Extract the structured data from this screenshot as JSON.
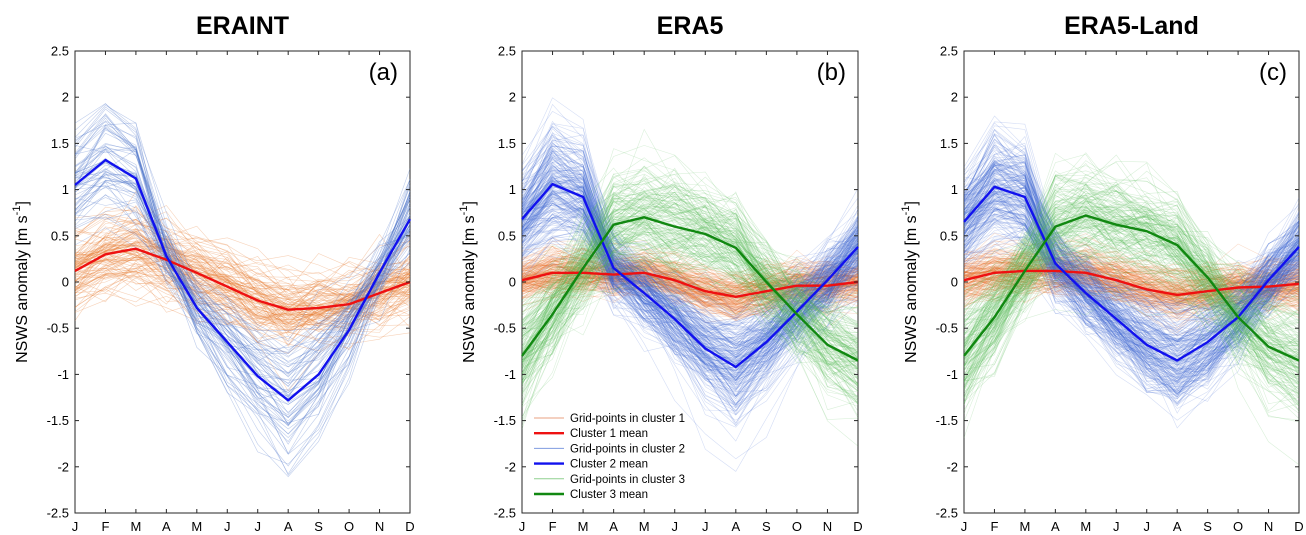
{
  "chart_data": [
    {
      "type": "line",
      "title": "ERAINT",
      "panel_label": "(a)",
      "ylabel": "NSWS anomaly [m s",
      "ylabel_sup": "-1",
      "ylabel_end": "]",
      "x": [
        "J",
        "F",
        "M",
        "A",
        "M",
        "J",
        "J",
        "A",
        "S",
        "O",
        "N",
        "D"
      ],
      "ylim": [
        -2.5,
        2.5
      ],
      "yticks": [
        "-2.5",
        "-2",
        "-1.5",
        "-1",
        "-0.5",
        "0",
        "0.5",
        "1",
        "1.5",
        "2",
        "2.5"
      ],
      "series": [
        {
          "name": "Cluster 1 mean",
          "color": "#ee1111",
          "values": [
            0.12,
            0.3,
            0.36,
            0.24,
            0.1,
            -0.05,
            -0.2,
            -0.3,
            -0.28,
            -0.24,
            -0.12,
            0.0
          ]
        },
        {
          "name": "Cluster 2 mean",
          "color": "#1111ee",
          "values": [
            1.05,
            1.32,
            1.12,
            0.28,
            -0.28,
            -0.65,
            -1.02,
            -1.28,
            -1.0,
            -0.52,
            0.1,
            0.68
          ]
        }
      ],
      "spread": [
        {
          "name": "Grid-points in cluster 1",
          "color": "#e8803a",
          "width": 0.35
        },
        {
          "name": "Grid-points in cluster 2",
          "color": "#4a72c8",
          "width": 0.3
        }
      ]
    },
    {
      "type": "line",
      "title": "ERA5",
      "panel_label": "(b)",
      "ylabel": "NSWS anomaly [m s",
      "ylabel_sup": "-1",
      "ylabel_end": "]",
      "x": [
        "J",
        "F",
        "M",
        "A",
        "M",
        "J",
        "J",
        "A",
        "S",
        "O",
        "N",
        "D"
      ],
      "ylim": [
        -2.5,
        2.5
      ],
      "yticks": [
        "-2.5",
        "-2",
        "-1.5",
        "-1",
        "-0.5",
        "0",
        "0.5",
        "1",
        "1.5",
        "2",
        "2.5"
      ],
      "series": [
        {
          "name": "Cluster 1 mean",
          "color": "#ee1111",
          "values": [
            0.02,
            0.1,
            0.1,
            0.08,
            0.1,
            0.02,
            -0.1,
            -0.16,
            -0.1,
            -0.04,
            -0.04,
            0.0
          ]
        },
        {
          "name": "Cluster 2 mean",
          "color": "#1111ee",
          "values": [
            0.68,
            1.06,
            0.92,
            0.15,
            -0.12,
            -0.4,
            -0.72,
            -0.92,
            -0.65,
            -0.32,
            0.02,
            0.38
          ]
        },
        {
          "name": "Cluster 3 mean",
          "color": "#118811",
          "values": [
            -0.8,
            -0.35,
            0.15,
            0.62,
            0.7,
            0.6,
            0.52,
            0.37,
            0.0,
            -0.35,
            -0.68,
            -0.85
          ]
        }
      ],
      "spread": [
        {
          "name": "Grid-points in cluster 1",
          "color": "#e86a20",
          "width": 0.22
        },
        {
          "name": "Grid-points in cluster 2",
          "color": "#3a62d0",
          "width": 0.32
        },
        {
          "name": "Grid-points in cluster 3",
          "color": "#55bb55",
          "width": 0.4
        }
      ],
      "legend": {
        "placement": "bottom-left",
        "entries": [
          {
            "label": "Grid-points in cluster 1",
            "color": "#e8a080",
            "thin": true
          },
          {
            "label": "Cluster 1 mean",
            "color": "#ee1111",
            "thin": false
          },
          {
            "label": "Grid-points in cluster 2",
            "color": "#7f9be0",
            "thin": true
          },
          {
            "label": "Cluster 2 mean",
            "color": "#1111ee",
            "thin": false
          },
          {
            "label": "Grid-points in cluster 3",
            "color": "#8fd08f",
            "thin": true
          },
          {
            "label": "Cluster 3 mean",
            "color": "#118811",
            "thin": false
          }
        ]
      }
    },
    {
      "type": "line",
      "title": "ERA5-Land",
      "panel_label": "(c)",
      "ylabel": "NSWS anomaly [m s",
      "ylabel_sup": "-1",
      "ylabel_end": "]",
      "x": [
        "J",
        "F",
        "M",
        "A",
        "M",
        "J",
        "J",
        "A",
        "S",
        "O",
        "N",
        "D"
      ],
      "ylim": [
        -2.5,
        2.5
      ],
      "yticks": [
        "-2.5",
        "-2",
        "-1.5",
        "-1",
        "-0.5",
        "0",
        "0.5",
        "1",
        "1.5",
        "2",
        "2.5"
      ],
      "series": [
        {
          "name": "Cluster 1 mean",
          "color": "#ee1111",
          "values": [
            0.02,
            0.1,
            0.12,
            0.12,
            0.1,
            0.02,
            -0.08,
            -0.14,
            -0.1,
            -0.06,
            -0.05,
            -0.02
          ]
        },
        {
          "name": "Cluster 2 mean",
          "color": "#1111ee",
          "values": [
            0.65,
            1.03,
            0.92,
            0.2,
            -0.12,
            -0.4,
            -0.68,
            -0.85,
            -0.65,
            -0.38,
            0.02,
            0.38
          ]
        },
        {
          "name": "Cluster 3 mean",
          "color": "#118811",
          "values": [
            -0.8,
            -0.38,
            0.12,
            0.6,
            0.72,
            0.62,
            0.55,
            0.4,
            0.05,
            -0.38,
            -0.7,
            -0.85
          ]
        }
      ],
      "spread": [
        {
          "name": "Grid-points in cluster 1",
          "color": "#e86a20",
          "width": 0.24
        },
        {
          "name": "Grid-points in cluster 2",
          "color": "#3a62d0",
          "width": 0.33
        },
        {
          "name": "Grid-points in cluster 3",
          "color": "#55bb55",
          "width": 0.4
        }
      ]
    }
  ]
}
